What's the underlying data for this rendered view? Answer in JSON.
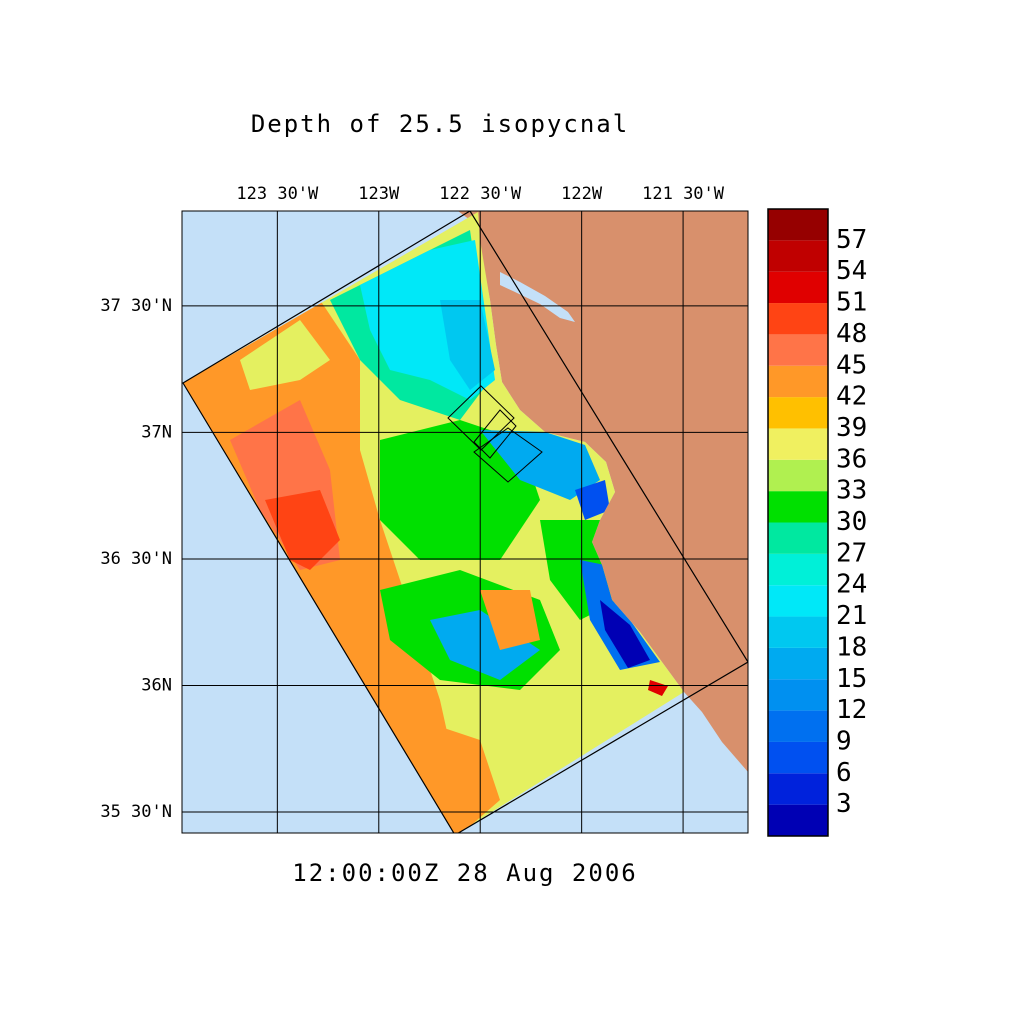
{
  "title": "Depth of 25.5 isopycnal",
  "time_label": "12:00:00Z  28 Aug 2006",
  "map": {
    "xlim": [
      -123.97,
      -121.18
    ],
    "ylim": [
      35.417,
      37.875
    ],
    "xticks": [
      {
        "value": -123.5,
        "label": "123 30'W"
      },
      {
        "value": -123,
        "label": "123W"
      },
      {
        "value": -122.5,
        "label": "122 30'W"
      },
      {
        "value": -122,
        "label": "122W"
      },
      {
        "value": -121.5,
        "label": "121 30'W"
      }
    ],
    "yticks": [
      {
        "value": 37.5,
        "label": "37 30'N"
      },
      {
        "value": 37,
        "label": "37N"
      },
      {
        "value": 36.5,
        "label": "36 30'N"
      },
      {
        "value": 36,
        "label": "36N"
      },
      {
        "value": 35.5,
        "label": "35 30'N"
      }
    ]
  },
  "colorbar": {
    "levels": [
      0,
      3,
      6,
      9,
      12,
      15,
      18,
      21,
      24,
      27,
      30,
      33,
      36,
      39,
      42,
      45,
      48,
      51,
      54,
      57,
      60
    ],
    "colors": [
      "#0000b4",
      "#0022dc",
      "#0050f0",
      "#0070f0",
      "#0090f0",
      "#00aaf0",
      "#00c8f0",
      "#00e8f8",
      "#00f0d8",
      "#00e8a0",
      "#00e000",
      "#b0f050",
      "#f0f060",
      "#ffc000",
      "#ff9828",
      "#ff7448",
      "#ff4414",
      "#e00000",
      "#c00000",
      "#960000"
    ]
  }
}
